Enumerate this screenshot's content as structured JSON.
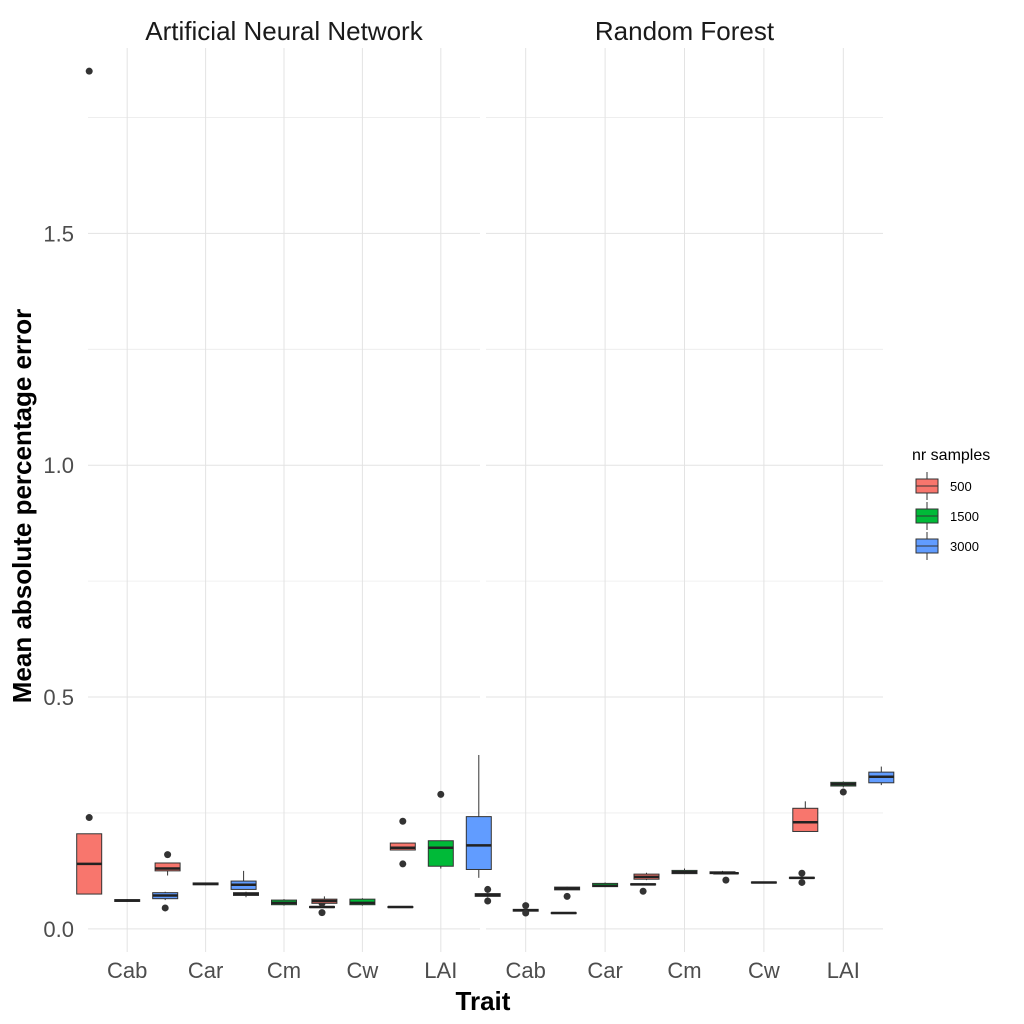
{
  "chart_data": {
    "type": "box",
    "xlabel": "Trait",
    "ylabel": "Mean absolute percentage error",
    "ylim": [
      -0.05,
      1.9
    ],
    "yticks": [
      0.0,
      0.5,
      1.0,
      1.5
    ],
    "ytick_labels": [
      "0.0",
      "0.5",
      "1.0",
      "1.5"
    ],
    "grid": true,
    "categories": [
      "Cab",
      "Car",
      "Cm",
      "Cw",
      "LAI"
    ],
    "legend": {
      "title": "nr samples",
      "placement": "right",
      "entries": [
        {
          "label": "500",
          "color": "#F8766D"
        },
        {
          "label": "1500",
          "color": "#00BA38"
        },
        {
          "label": "3000",
          "color": "#619CFF"
        }
      ]
    },
    "facets": [
      {
        "title": "Artificial Neural Network",
        "boxes": [
          {
            "category": "Cab",
            "group": "500",
            "min": 0.075,
            "q1": 0.075,
            "median": 0.14,
            "q3": 0.205,
            "max": 0.205,
            "outliers": [
              1.85,
              0.24
            ]
          },
          {
            "category": "Cab",
            "group": "1500",
            "min": 0.058,
            "q1": 0.059,
            "median": 0.061,
            "q3": 0.063,
            "max": 0.064,
            "outliers": []
          },
          {
            "category": "Cab",
            "group": "3000",
            "min": 0.062,
            "q1": 0.065,
            "median": 0.072,
            "q3": 0.078,
            "max": 0.08,
            "outliers": [
              0.045
            ]
          },
          {
            "category": "Car",
            "group": "500",
            "min": 0.115,
            "q1": 0.125,
            "median": 0.13,
            "q3": 0.142,
            "max": 0.142,
            "outliers": [
              0.16
            ]
          },
          {
            "category": "Car",
            "group": "1500",
            "min": 0.094,
            "q1": 0.095,
            "median": 0.097,
            "q3": 0.099,
            "max": 0.1,
            "outliers": []
          },
          {
            "category": "Car",
            "group": "3000",
            "min": 0.085,
            "q1": 0.085,
            "median": 0.095,
            "q3": 0.103,
            "max": 0.125,
            "outliers": []
          },
          {
            "category": "Cm",
            "group": "500",
            "min": 0.068,
            "q1": 0.072,
            "median": 0.075,
            "q3": 0.078,
            "max": 0.08,
            "outliers": []
          },
          {
            "category": "Cm",
            "group": "1500",
            "min": 0.05,
            "q1": 0.052,
            "median": 0.056,
            "q3": 0.062,
            "max": 0.064,
            "outliers": []
          },
          {
            "category": "Cm",
            "group": "3000",
            "min": 0.045,
            "q1": 0.046,
            "median": 0.047,
            "q3": 0.048,
            "max": 0.049,
            "outliers": [
              0.055,
              0.035
            ]
          },
          {
            "category": "Cw",
            "group": "500",
            "min": 0.053,
            "q1": 0.055,
            "median": 0.06,
            "q3": 0.064,
            "max": 0.07,
            "outliers": []
          },
          {
            "category": "Cw",
            "group": "1500",
            "min": 0.05,
            "q1": 0.052,
            "median": 0.056,
            "q3": 0.064,
            "max": 0.066,
            "outliers": []
          },
          {
            "category": "Cw",
            "group": "3000",
            "min": 0.045,
            "q1": 0.046,
            "median": 0.047,
            "q3": 0.048,
            "max": 0.049,
            "outliers": []
          },
          {
            "category": "LAI",
            "group": "500",
            "min": 0.17,
            "q1": 0.17,
            "median": 0.175,
            "q3": 0.185,
            "max": 0.185,
            "outliers": [
              0.232,
              0.14
            ]
          },
          {
            "category": "LAI",
            "group": "1500",
            "min": 0.13,
            "q1": 0.135,
            "median": 0.175,
            "q3": 0.19,
            "max": 0.19,
            "outliers": [
              0.29
            ]
          },
          {
            "category": "LAI",
            "group": "3000",
            "min": 0.11,
            "q1": 0.128,
            "median": 0.18,
            "q3": 0.242,
            "max": 0.375,
            "outliers": []
          }
        ]
      },
      {
        "title": "Random Forest",
        "boxes": [
          {
            "category": "Cab",
            "group": "500",
            "min": 0.068,
            "q1": 0.07,
            "median": 0.073,
            "q3": 0.076,
            "max": 0.078,
            "outliers": [
              0.085,
              0.06
            ]
          },
          {
            "category": "Cab",
            "group": "1500",
            "min": 0.037,
            "q1": 0.038,
            "median": 0.04,
            "q3": 0.042,
            "max": 0.043,
            "outliers": [
              0.05,
              0.034
            ]
          },
          {
            "category": "Cab",
            "group": "3000",
            "min": 0.032,
            "q1": 0.033,
            "median": 0.034,
            "q3": 0.035,
            "max": 0.036,
            "outliers": []
          },
          {
            "category": "Car",
            "group": "500",
            "min": 0.083,
            "q1": 0.084,
            "median": 0.087,
            "q3": 0.09,
            "max": 0.091,
            "outliers": [
              0.07
            ]
          },
          {
            "category": "Car",
            "group": "1500",
            "min": 0.09,
            "q1": 0.091,
            "median": 0.093,
            "q3": 0.098,
            "max": 0.1,
            "outliers": []
          },
          {
            "category": "Car",
            "group": "3000",
            "min": 0.094,
            "q1": 0.095,
            "median": 0.096,
            "q3": 0.097,
            "max": 0.098,
            "outliers": [
              0.081
            ]
          },
          {
            "category": "Cm",
            "group": "500",
            "min": 0.105,
            "q1": 0.107,
            "median": 0.112,
            "q3": 0.118,
            "max": 0.121,
            "outliers": []
          },
          {
            "category": "Cm",
            "group": "1500",
            "min": 0.118,
            "q1": 0.119,
            "median": 0.122,
            "q3": 0.126,
            "max": 0.13,
            "outliers": []
          },
          {
            "category": "Cm",
            "group": "3000",
            "min": 0.118,
            "q1": 0.119,
            "median": 0.121,
            "q3": 0.123,
            "max": 0.125,
            "outliers": []
          },
          {
            "category": "Cw",
            "group": "500",
            "min": 0.118,
            "q1": 0.119,
            "median": 0.12,
            "q3": 0.121,
            "max": 0.122,
            "outliers": [
              0.105
            ]
          },
          {
            "category": "Cw",
            "group": "1500",
            "min": 0.098,
            "q1": 0.099,
            "median": 0.1,
            "q3": 0.101,
            "max": 0.102,
            "outliers": []
          },
          {
            "category": "Cw",
            "group": "3000",
            "min": 0.108,
            "q1": 0.109,
            "median": 0.11,
            "q3": 0.111,
            "max": 0.112,
            "outliers": [
              0.12,
              0.1
            ]
          },
          {
            "category": "LAI",
            "group": "500",
            "min": 0.21,
            "q1": 0.21,
            "median": 0.23,
            "q3": 0.26,
            "max": 0.275,
            "outliers": []
          },
          {
            "category": "LAI",
            "group": "1500",
            "min": 0.305,
            "q1": 0.308,
            "median": 0.312,
            "q3": 0.316,
            "max": 0.318,
            "outliers": [
              0.295
            ]
          },
          {
            "category": "LAI",
            "group": "3000",
            "min": 0.31,
            "q1": 0.315,
            "median": 0.328,
            "q3": 0.338,
            "max": 0.35,
            "outliers": []
          }
        ]
      }
    ]
  }
}
